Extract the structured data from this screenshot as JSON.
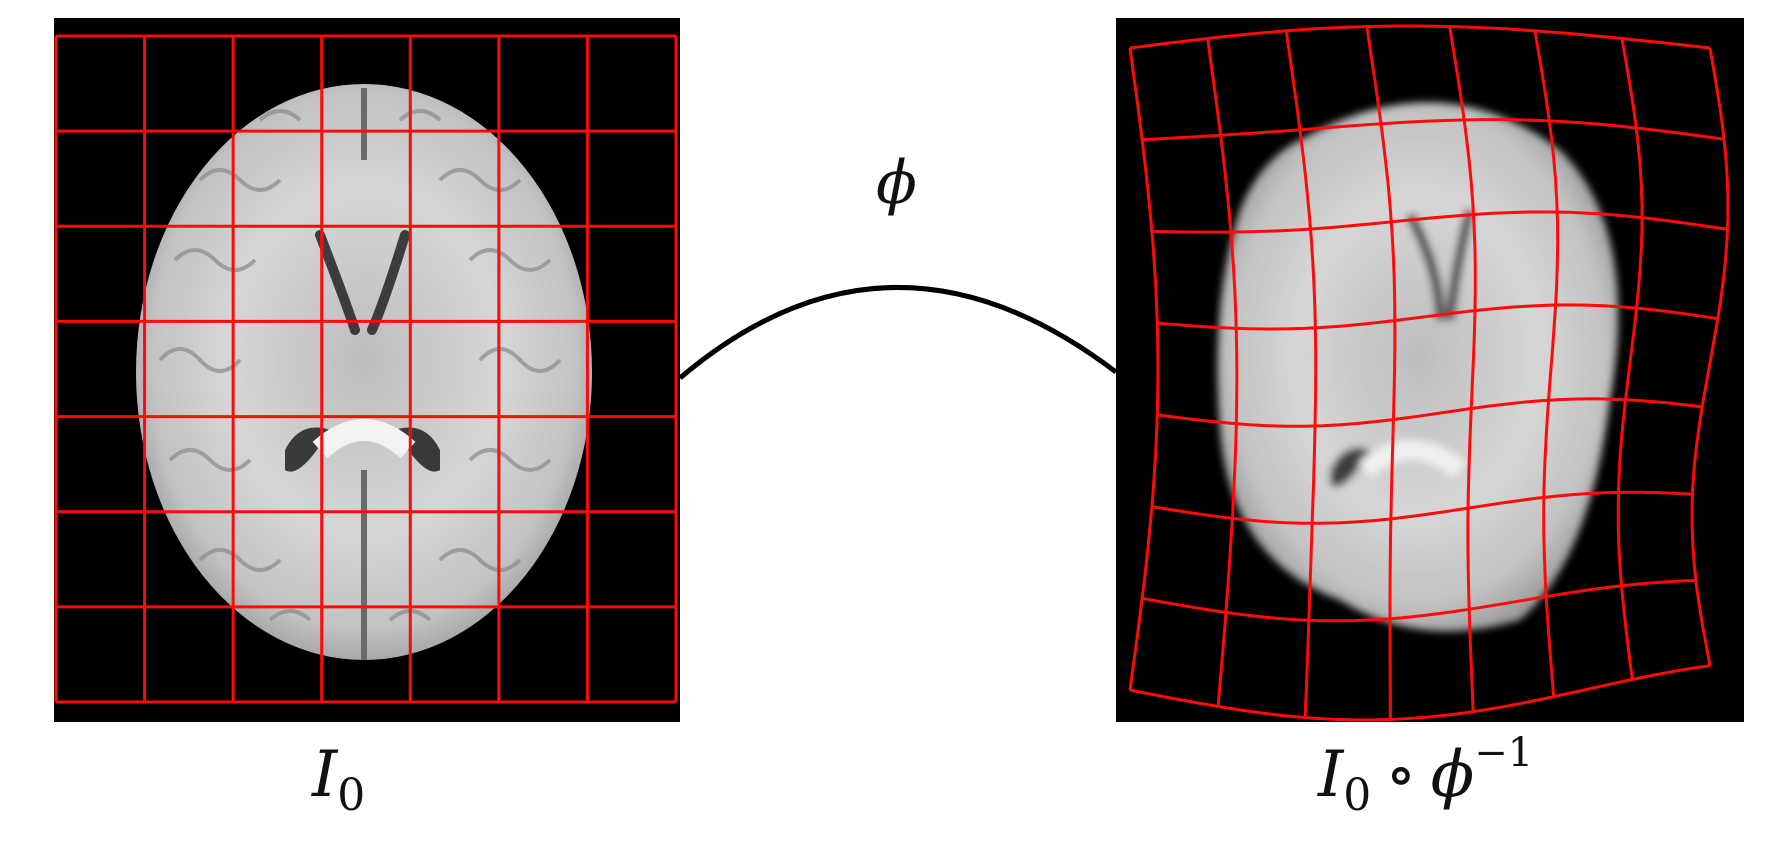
{
  "colors": {
    "grid": "#ff0a0a",
    "panel_background": "#000000",
    "arrow": "#000000",
    "brain_light": "#d8d8d8",
    "brain_dark": "#8c8c8c"
  },
  "source": {
    "symbol": "I",
    "subscript": "0"
  },
  "transform": {
    "symbol": "ϕ"
  },
  "target": {
    "symbol": "I",
    "subscript": "0",
    "operator": "∘",
    "map_symbol": "ϕ",
    "superscript": "−1"
  }
}
